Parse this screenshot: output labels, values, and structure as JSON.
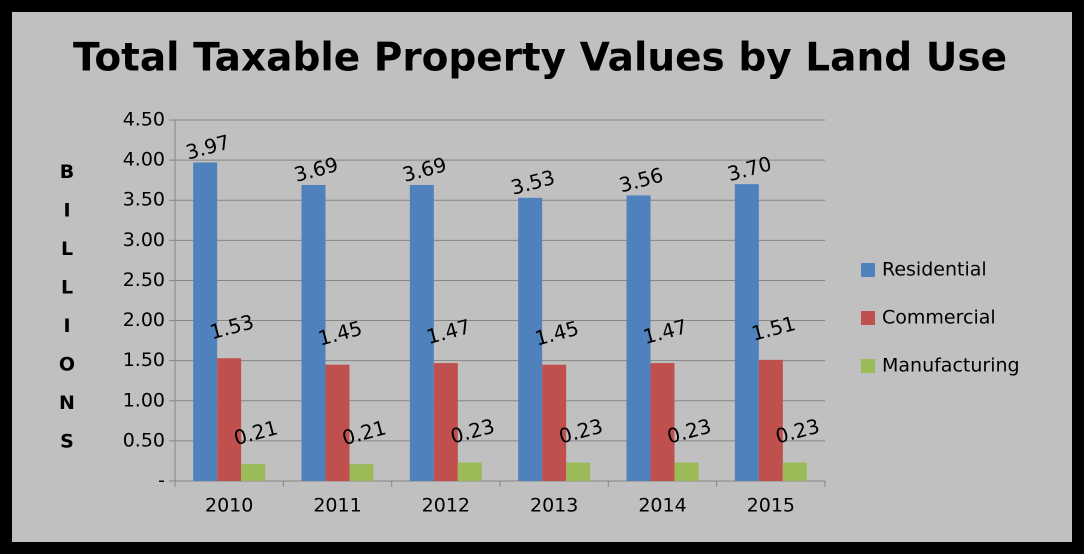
{
  "chart_data": {
    "type": "bar",
    "title": "Total Taxable Property Values by Land Use",
    "y_label": "BILLIONS",
    "categories": [
      "2010",
      "2011",
      "2012",
      "2013",
      "2014",
      "2015"
    ],
    "series": [
      {
        "name": "Residential",
        "color": "#4f81bd",
        "values": [
          3.97,
          3.69,
          3.69,
          3.53,
          3.56,
          3.7
        ],
        "value_labels": [
          "3.97",
          "3.69",
          "3.69",
          "3.53",
          "3.56",
          "3.70"
        ]
      },
      {
        "name": "Commercial",
        "color": "#c0504d",
        "values": [
          1.53,
          1.45,
          1.47,
          1.45,
          1.47,
          1.51
        ]
      },
      {
        "name": "Manufacturing",
        "color": "#9bbb59",
        "values": [
          0.21,
          0.21,
          0.23,
          0.23,
          0.23,
          0.23
        ]
      }
    ],
    "ylim": [
      0,
      4.5
    ],
    "yticks": [
      {
        "value": 0,
        "label": "-"
      },
      {
        "value": 0.5,
        "label": "0.50"
      },
      {
        "value": 1,
        "label": "1.00"
      },
      {
        "value": 1.5,
        "label": "1.50"
      },
      {
        "value": 2,
        "label": "2.00"
      },
      {
        "value": 2.5,
        "label": "2.50"
      },
      {
        "value": 3,
        "label": "3.00"
      },
      {
        "value": 3.5,
        "label": "3.50"
      },
      {
        "value": 4,
        "label": "4.00"
      },
      {
        "value": 4.5,
        "label": "4.50"
      }
    ],
    "grid": true,
    "legend": "right"
  }
}
